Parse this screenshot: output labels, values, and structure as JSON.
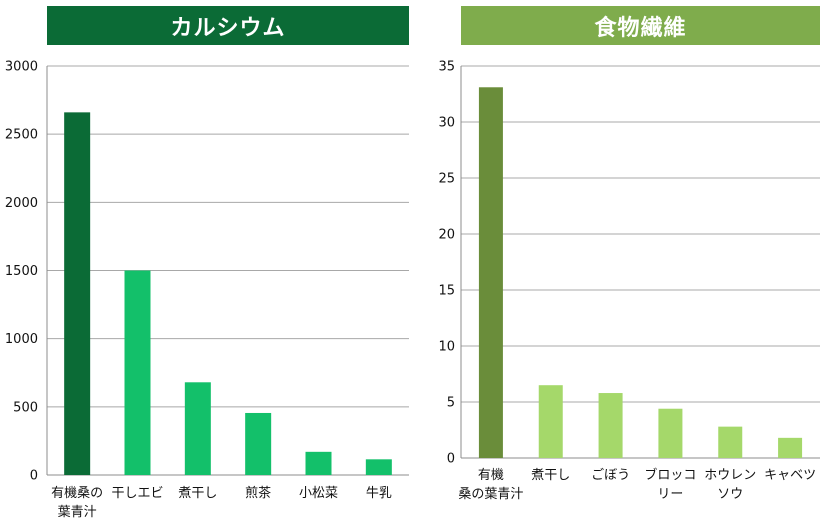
{
  "chart_data": [
    {
      "type": "bar",
      "title": "カルシウム",
      "title_color": "#0b6b36",
      "categories": [
        [
          "有機桑の",
          "葉青汁"
        ],
        [
          "干しエビ"
        ],
        [
          "煮干し"
        ],
        [
          "煎茶"
        ],
        [
          "小松菜"
        ],
        [
          "牛乳"
        ]
      ],
      "values": [
        2660,
        1500,
        680,
        455,
        170,
        115
      ],
      "bar_colors": [
        "#0b6b36",
        "#13c06a",
        "#13c06a",
        "#13c06a",
        "#13c06a",
        "#13c06a"
      ],
      "ylim": [
        0,
        3000
      ],
      "yticks": [
        0,
        500,
        1000,
        1500,
        2000,
        2500,
        3000
      ],
      "ytick_labels": [
        "0",
        "500",
        "1000",
        "1500",
        "2000",
        "2500",
        "3000"
      ],
      "grid": true
    },
    {
      "type": "bar",
      "title": "食物繊維",
      "title_color": "#7fac4c",
      "categories": [
        [
          "有機",
          "桑の葉青汁"
        ],
        [
          "煮干し"
        ],
        [
          "ごぼう"
        ],
        [
          "ブロッコ",
          "リー"
        ],
        [
          "ホウレン",
          "ソウ"
        ],
        [
          "キャベツ"
        ]
      ],
      "values": [
        33.1,
        6.5,
        5.8,
        4.4,
        2.8,
        1.8
      ],
      "bar_colors": [
        "#6a8d3a",
        "#a5d86a",
        "#a5d86a",
        "#a5d86a",
        "#a5d86a",
        "#a5d86a"
      ],
      "ylim": [
        0,
        35
      ],
      "yticks": [
        0,
        5,
        10,
        15,
        20,
        25,
        30,
        35
      ],
      "ytick_labels": [
        "0",
        "5",
        "10",
        "15",
        "20",
        "25",
        "30",
        "35"
      ],
      "grid": true
    }
  ]
}
